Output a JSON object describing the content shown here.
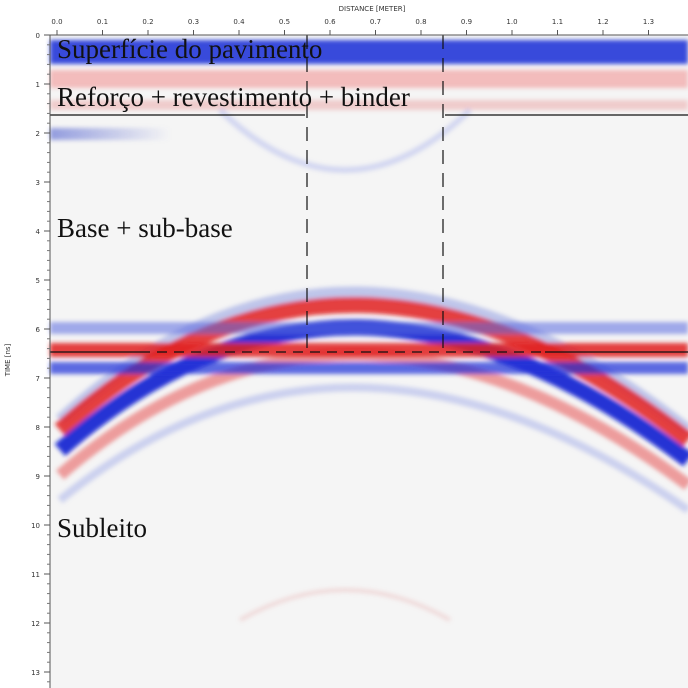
{
  "axes": {
    "x_title": "DISTANCE [METER]",
    "y_title": "TIME [ns]",
    "x_ticks": [
      "0.0",
      "0.1",
      "0.2",
      "0.3",
      "0.4",
      "0.5",
      "0.6",
      "0.7",
      "0.8",
      "0.9",
      "1.0",
      "1.1",
      "1.2",
      "1.3"
    ],
    "y_ticks": [
      "0",
      "1",
      "2",
      "3",
      "4",
      "5",
      "6",
      "7",
      "8",
      "9",
      "10",
      "11",
      "12",
      "13"
    ]
  },
  "annotations": [
    "Superfície do pavimento",
    "Reforço + revestimento + binder",
    "Base + sub-base",
    "Subleito"
  ]
}
